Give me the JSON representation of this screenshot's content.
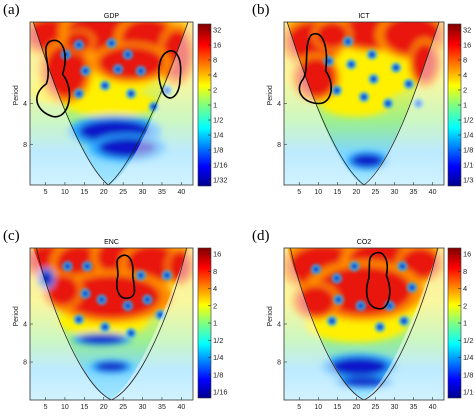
{
  "chart_data": [
    {
      "type": "heatmap",
      "panel_label": "(a)",
      "title": "GDP",
      "ylabel": "Period",
      "x_ticks": [
        "5",
        "10",
        "15",
        "20",
        "25",
        "30",
        "35",
        "40"
      ],
      "y_ticks": [
        "4",
        "8"
      ],
      "x_range": [
        1,
        43
      ],
      "period_range": [
        1,
        16
      ],
      "colorbar_ticks": [
        "32",
        "16",
        "8",
        "4",
        "2",
        "1",
        "1/2",
        "1/4",
        "1/8",
        "1/16",
        "1/32"
      ],
      "significance_regions": [
        {
          "x_center": 7,
          "period_center": 3.2
        },
        {
          "x_center": 37,
          "period_center": 2.8
        }
      ]
    },
    {
      "type": "heatmap",
      "panel_label": "(b)",
      "title": "ICT",
      "ylabel": "Period",
      "x_ticks": [
        "5",
        "10",
        "15",
        "20",
        "25",
        "30",
        "35",
        "40"
      ],
      "y_ticks": [
        "4",
        "8"
      ],
      "x_range": [
        1,
        43
      ],
      "period_range": [
        1,
        16
      ],
      "colorbar_ticks": [
        "32",
        "16",
        "8",
        "4",
        "2",
        "1",
        "1/2",
        "1/4",
        "1/8",
        "1/16",
        "1/32"
      ],
      "significance_regions": [
        {
          "x_center": 8,
          "period_center": 3.0
        }
      ]
    },
    {
      "type": "heatmap",
      "panel_label": "(c)",
      "title": "ENC",
      "ylabel": "Period",
      "x_ticks": [
        "5",
        "10",
        "15",
        "20",
        "25",
        "30",
        "35",
        "40"
      ],
      "y_ticks": [
        "4",
        "8"
      ],
      "x_range": [
        1,
        43
      ],
      "period_range": [
        1,
        16
      ],
      "colorbar_ticks": [
        "16",
        "8",
        "4",
        "2",
        "1",
        "1/2",
        "1/4",
        "1/8",
        "1/16"
      ],
      "significance_regions": [
        {
          "x_center": 25,
          "period_center": 2.3
        }
      ]
    },
    {
      "type": "heatmap",
      "panel_label": "(d)",
      "title": "CO2",
      "ylabel": "Period",
      "x_ticks": [
        "5",
        "10",
        "15",
        "20",
        "25",
        "30",
        "35",
        "40"
      ],
      "y_ticks": [
        "4",
        "8"
      ],
      "x_range": [
        1,
        43
      ],
      "period_range": [
        1,
        16
      ],
      "colorbar_ticks": [
        "16",
        "8",
        "4",
        "2",
        "1",
        "1/2",
        "1/4",
        "1/8",
        "1/16"
      ],
      "significance_regions": [
        {
          "x_center": 25,
          "period_center": 2.4
        }
      ]
    }
  ]
}
